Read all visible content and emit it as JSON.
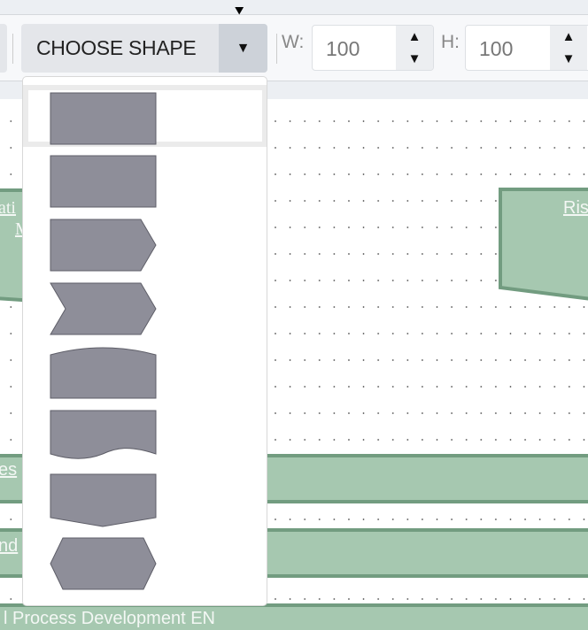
{
  "toolbar": {
    "choose_shape_label": "CHOOSE SHAPE",
    "width_label": "W:",
    "width_value": "100",
    "height_label": "H:",
    "height_value": "100"
  },
  "canvas": {
    "left_shape_text_1": "ati",
    "left_shape_text_2": "M",
    "right_shape_text": "Ris",
    "band1_text": "es",
    "band2_text": "nd",
    "band3_text": "l Process Development EN"
  },
  "shape_menu": {
    "items": [
      "rectangle",
      "rectangle",
      "pentagon-arrow",
      "chevron",
      "curved-top",
      "document-wave",
      "offpage-connector",
      "hexagon"
    ],
    "selected_index": 0
  },
  "colors": {
    "shape_fill": "#8e8e99",
    "shape_stroke": "#5e5e68",
    "diagram_fill": "#a6c8b0",
    "diagram_stroke": "#729c80"
  }
}
